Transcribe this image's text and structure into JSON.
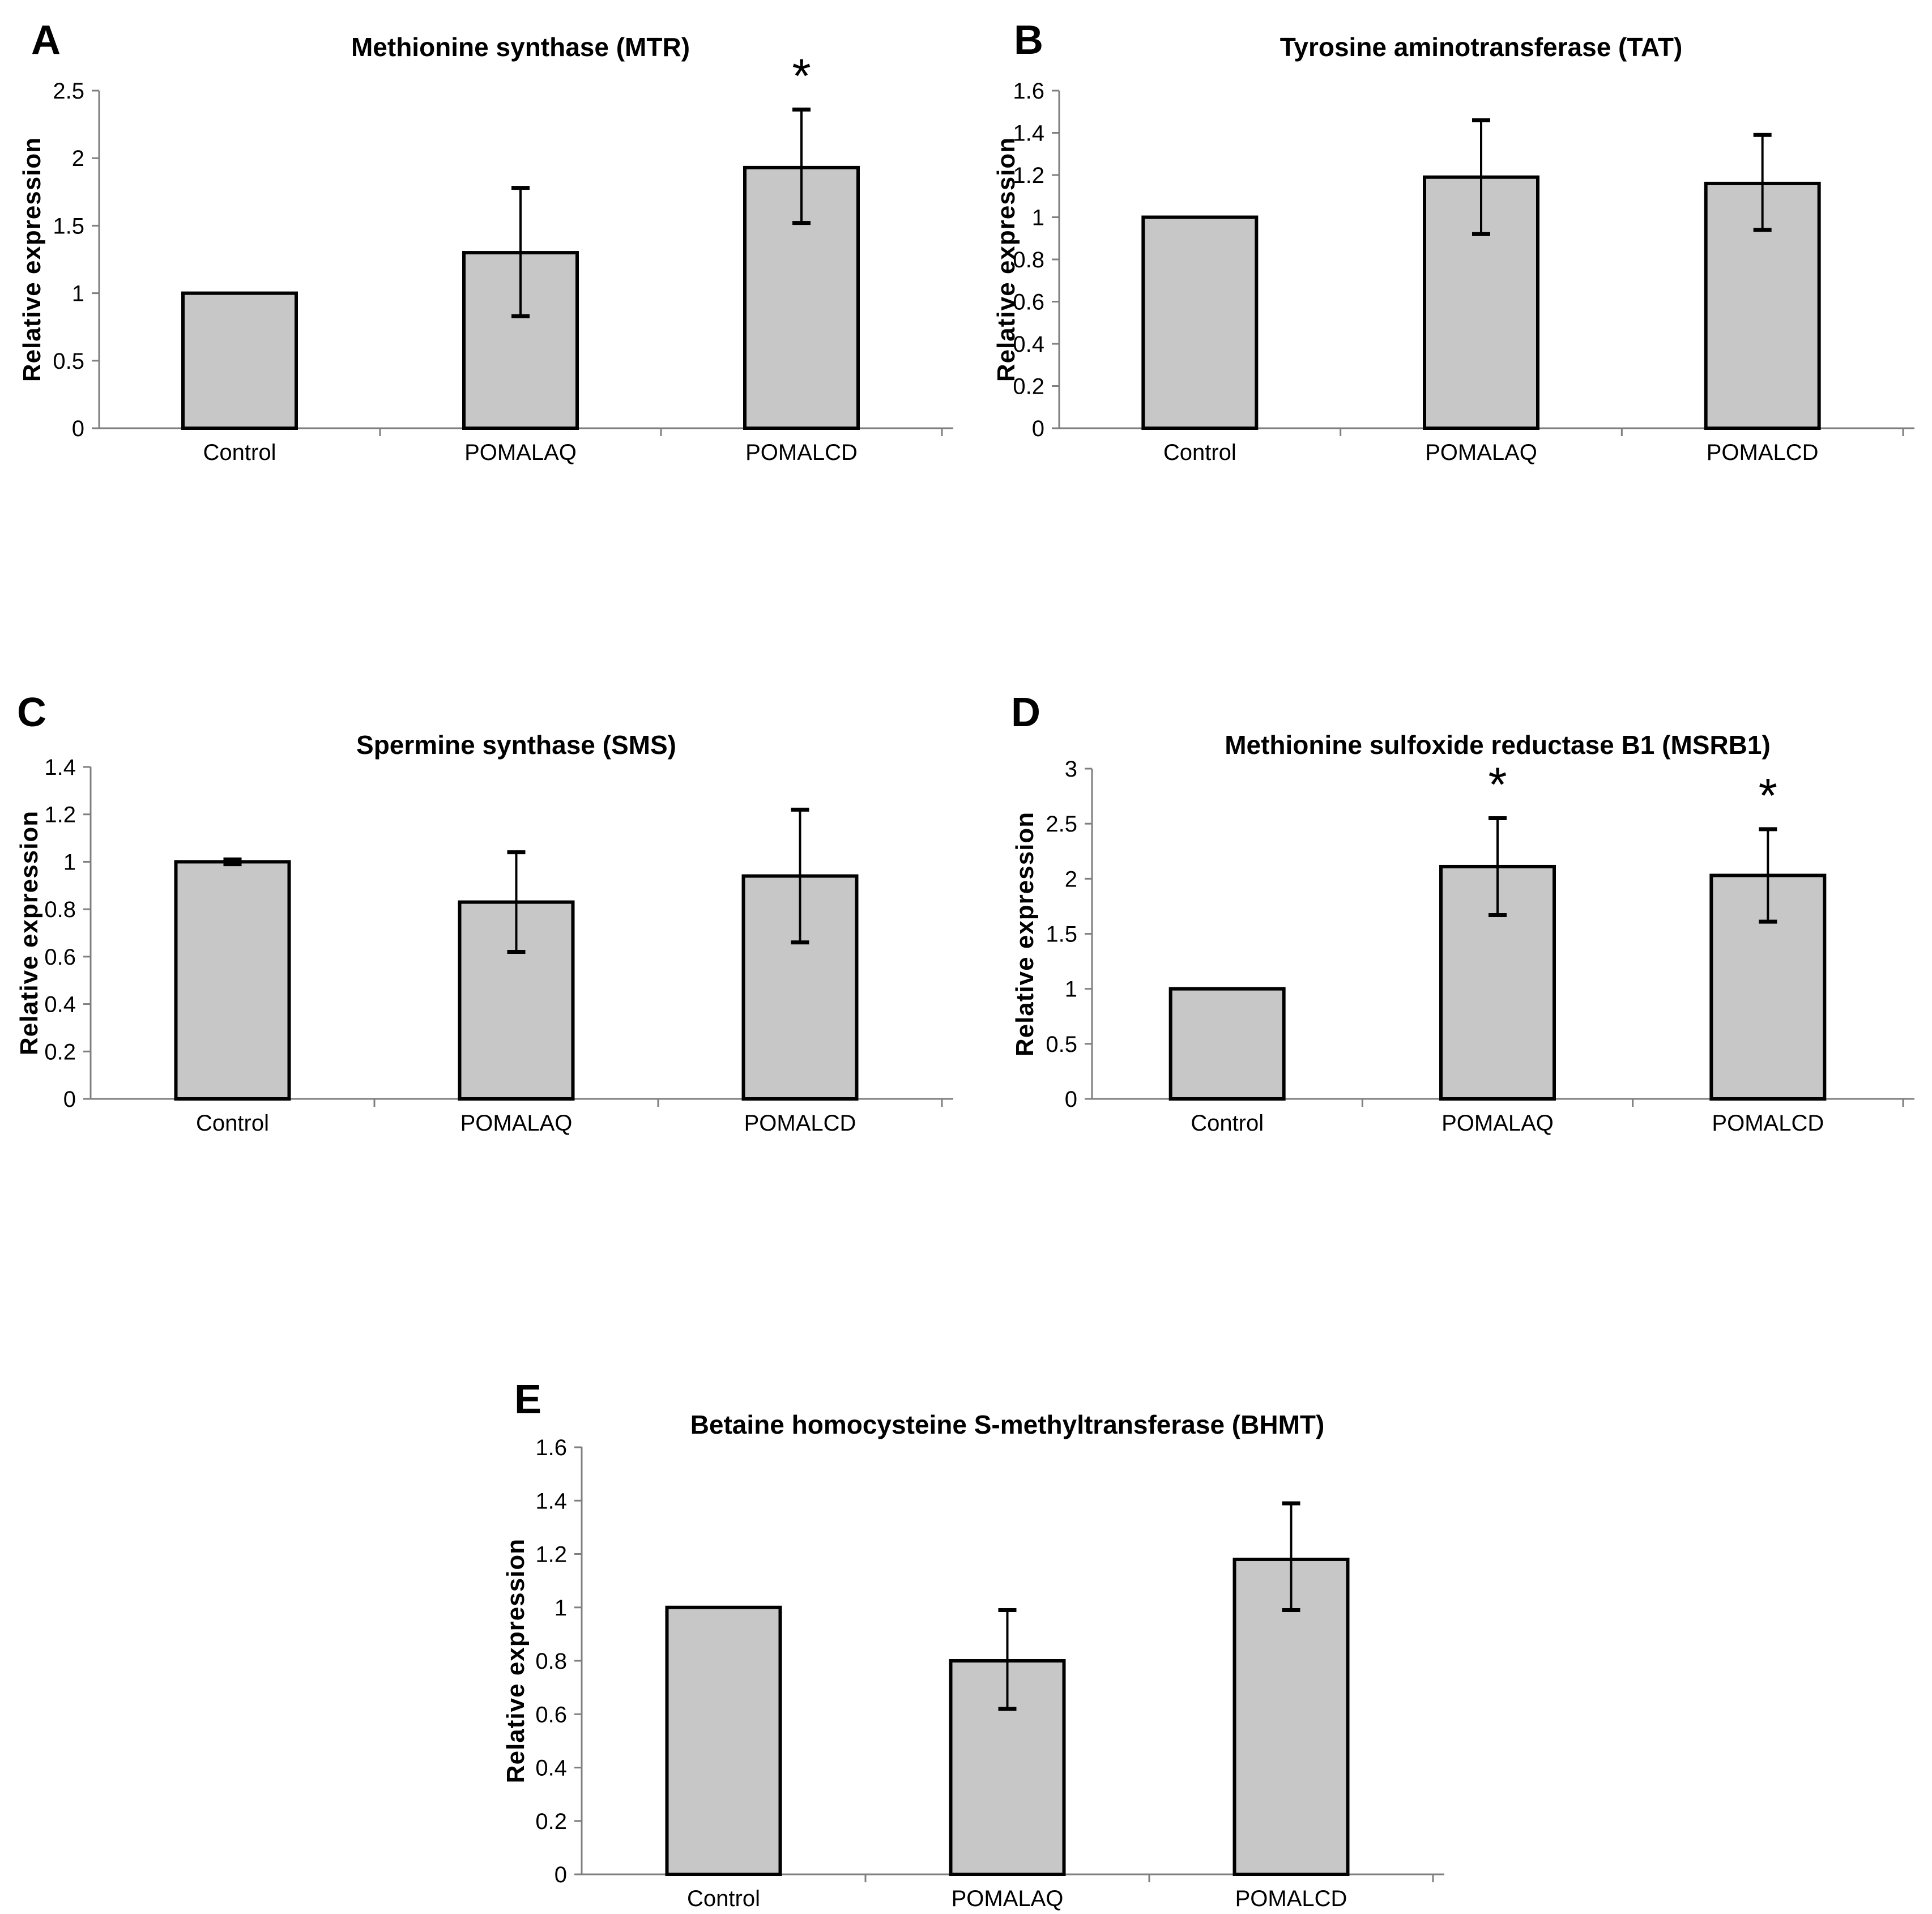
{
  "style": {
    "bar_fill": "#c7c7c7",
    "bar_stroke": "#000000",
    "axis_color": "#7f7f7f",
    "error_bar_color": "#000000",
    "text_color": "#000000",
    "background": "#ffffff"
  },
  "chart_data": [
    {
      "panel_label": "A",
      "type": "bar",
      "title": "Methionine synthase (MTR)",
      "ylabel": "Relative expression",
      "xlabel": "",
      "categories": [
        "Control",
        "POMALAQ",
        "POMALCD"
      ],
      "values": [
        1.0,
        1.3,
        1.93
      ],
      "error_bars": [
        null,
        {
          "lo": 0.83,
          "hi": 1.78
        },
        {
          "lo": 1.52,
          "hi": 2.36
        }
      ],
      "significance": [
        "",
        "",
        "*"
      ],
      "ylim": [
        0,
        2.5
      ],
      "ytick_step": 0.5,
      "ytick_labels": [
        "0",
        "0.5",
        "1",
        "1.5",
        "2",
        "2.5"
      ],
      "grid": false,
      "legend": null
    },
    {
      "panel_label": "B",
      "type": "bar",
      "title": "Tyrosine aminotransferase (TAT)",
      "ylabel": "Relative expression",
      "xlabel": "",
      "categories": [
        "Control",
        "POMALAQ",
        "POMALCD"
      ],
      "values": [
        1.0,
        1.19,
        1.16
      ],
      "error_bars": [
        null,
        {
          "lo": 0.92,
          "hi": 1.46
        },
        {
          "lo": 0.94,
          "hi": 1.39
        }
      ],
      "significance": [
        "",
        "",
        ""
      ],
      "ylim": [
        0,
        1.6
      ],
      "ytick_step": 0.2,
      "ytick_labels": [
        "0",
        "0.2",
        "0.4",
        "0.6",
        "0.8",
        "1",
        "1.2",
        "1.4",
        "1.6"
      ],
      "grid": false,
      "legend": null
    },
    {
      "panel_label": "C",
      "type": "bar",
      "title": "Spermine synthase (SMS)",
      "ylabel": "Relative expression",
      "xlabel": "",
      "categories": [
        "Control",
        "POMALAQ",
        "POMALCD"
      ],
      "values": [
        1.0,
        0.83,
        0.94
      ],
      "error_bars": [
        {
          "lo": 0.99,
          "hi": 1.01
        },
        {
          "lo": 0.62,
          "hi": 1.04
        },
        {
          "lo": 0.66,
          "hi": 1.22
        }
      ],
      "significance": [
        "",
        "",
        ""
      ],
      "ylim": [
        0,
        1.4
      ],
      "ytick_step": 0.2,
      "ytick_labels": [
        "0",
        "0.2",
        "0.4",
        "0.6",
        "0.8",
        "1",
        "1.2",
        "1.4"
      ],
      "grid": false,
      "legend": null
    },
    {
      "panel_label": "D",
      "type": "bar",
      "title": "Methionine sulfoxide reductase B1 (MSRB1)",
      "ylabel": "Relative expression",
      "xlabel": "",
      "categories": [
        "Control",
        "POMALAQ",
        "POMALCD"
      ],
      "values": [
        1.0,
        2.11,
        2.03
      ],
      "error_bars": [
        null,
        {
          "lo": 1.67,
          "hi": 2.55
        },
        {
          "lo": 1.61,
          "hi": 2.45
        }
      ],
      "significance": [
        "",
        "*",
        "*"
      ],
      "ylim": [
        0,
        3
      ],
      "ytick_step": 0.5,
      "ytick_labels": [
        "0",
        "0.5",
        "1",
        "1.5",
        "2",
        "2.5",
        "3"
      ],
      "grid": false,
      "legend": null
    },
    {
      "panel_label": "E",
      "type": "bar",
      "title": "Betaine homocysteine S-methyltransferase (BHMT)",
      "ylabel": "Relative expression",
      "xlabel": "",
      "categories": [
        "Control",
        "POMALAQ",
        "POMALCD"
      ],
      "values": [
        1.0,
        0.8,
        1.18
      ],
      "error_bars": [
        null,
        {
          "lo": 0.62,
          "hi": 0.99
        },
        {
          "lo": 0.99,
          "hi": 1.39
        }
      ],
      "significance": [
        "",
        "",
        ""
      ],
      "ylim": [
        0,
        1.6
      ],
      "ytick_step": 0.2,
      "ytick_labels": [
        "0",
        "0.2",
        "0.4",
        "0.6",
        "0.8",
        "1",
        "1.2",
        "1.4",
        "1.6"
      ],
      "grid": false,
      "legend": null
    }
  ]
}
